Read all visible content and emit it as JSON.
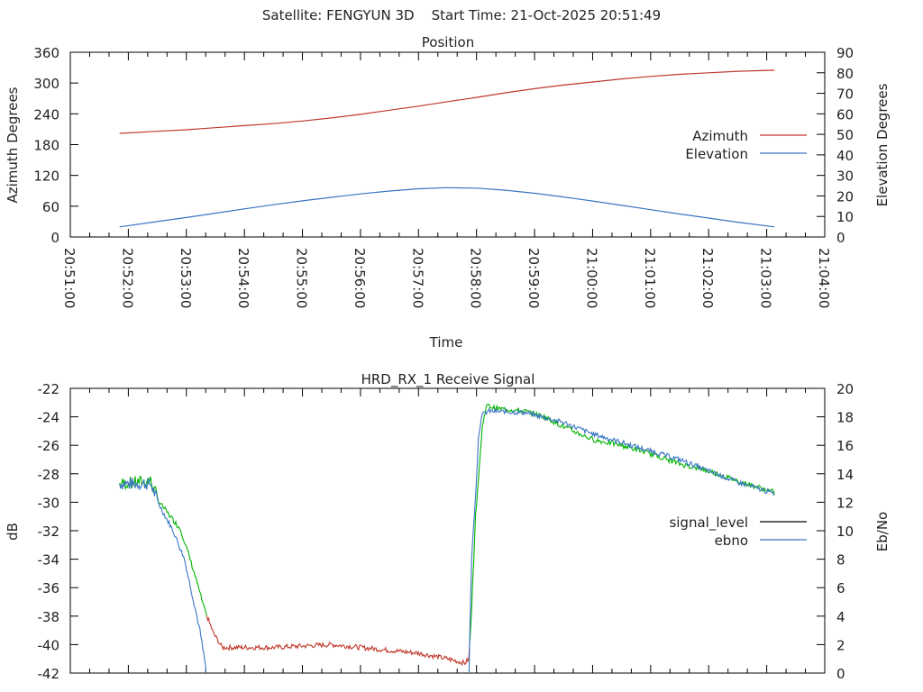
{
  "page_title": "Satellite: FENGYUN 3D    Start Time: 21-Oct-2025 20:51:49",
  "chart_data": [
    {
      "type": "line",
      "title": "Position",
      "xlabel": "Time",
      "ylabel": "Azimuth Degrees",
      "y2label": "Elevation Degrees",
      "xlim": [
        "20:51:00",
        "21:04:00"
      ],
      "ylim": [
        0,
        360
      ],
      "y2lim": [
        0,
        90
      ],
      "x_ticks": [
        "20:51:00",
        "20:52:00",
        "20:53:00",
        "20:54:00",
        "20:55:00",
        "20:56:00",
        "20:57:00",
        "20:58:00",
        "20:59:00",
        "21:00:00",
        "21:01:00",
        "21:02:00",
        "21:03:00",
        "21:04:00"
      ],
      "y_ticks": [
        "0",
        "60",
        "120",
        "180",
        "240",
        "300",
        "360"
      ],
      "y2_ticks": [
        "0",
        "10",
        "20",
        "30",
        "40",
        "50",
        "60",
        "70",
        "80",
        "90"
      ],
      "legend_position": "right",
      "x": [
        "20:51:51",
        "20:52:30",
        "20:53:00",
        "20:53:30",
        "20:54:00",
        "20:54:30",
        "20:55:00",
        "20:55:30",
        "20:56:00",
        "20:56:30",
        "20:57:00",
        "20:57:28",
        "20:58:00",
        "20:58:30",
        "20:59:00",
        "20:59:30",
        "21:00:00",
        "21:00:30",
        "21:01:00",
        "21:01:30",
        "21:02:00",
        "21:02:30",
        "21:03:08"
      ],
      "series": [
        {
          "name": "Azimuth",
          "axis": "y",
          "color": "#c0392b",
          "values": [
            202,
            206,
            209,
            213,
            217,
            221,
            226,
            232,
            239,
            247,
            255,
            263,
            272,
            281,
            289,
            296,
            302,
            308,
            313,
            317,
            320,
            323,
            325
          ]
        },
        {
          "name": "Elevation",
          "axis": "y2",
          "color": "#3a75c4",
          "values": [
            4.9,
            7.5,
            9.5,
            11.6,
            13.7,
            15.7,
            17.6,
            19.3,
            21.0,
            22.4,
            23.5,
            24.0,
            23.8,
            22.8,
            21.3,
            19.5,
            17.5,
            15.4,
            13.3,
            11.2,
            9.2,
            7.2,
            4.9
          ]
        }
      ]
    },
    {
      "type": "line",
      "title": "HRD_RX_1 Receive Signal",
      "ylabel": "dB",
      "y2label": "Eb/No",
      "xlim": [
        "20:51:00",
        "21:04:00"
      ],
      "ylim": [
        -42,
        -22
      ],
      "y2lim": [
        0,
        20
      ],
      "y_ticks": [
        "-42",
        "-40",
        "-38",
        "-36",
        "-34",
        "-32",
        "-30",
        "-28",
        "-26",
        "-24",
        "-22"
      ],
      "y2_ticks": [
        "0",
        "2",
        "4",
        "6",
        "8",
        "10",
        "12",
        "14",
        "16",
        "18",
        "20"
      ],
      "legend_position": "right",
      "signal_colors": {
        "ebno_positive": "#00b400",
        "ebno_zero": "#c0392b",
        "legend": "#000000"
      },
      "series": [
        {
          "name": "signal_level",
          "axis": "y",
          "color": "#000000",
          "x": [
            "20:51:51",
            "20:52:23",
            "20:52:32",
            "20:52:47",
            "20:52:54",
            "20:53:03",
            "20:53:10",
            "20:53:19",
            "20:53:28",
            "20:53:37",
            "20:53:45",
            "20:54:30",
            "20:55:30",
            "20:56:30",
            "20:57:00",
            "20:57:30",
            "20:57:48",
            "20:57:52",
            "20:57:55",
            "20:57:59",
            "20:58:02",
            "20:58:06",
            "20:58:10",
            "20:58:20",
            "20:58:50",
            "20:59:10",
            "20:59:30",
            "21:00:00",
            "21:00:30",
            "21:01:00",
            "21:01:30",
            "21:02:00",
            "21:02:30",
            "21:03:08"
          ],
          "values": [
            -28.7,
            -28.5,
            -30.0,
            -31.3,
            -31.9,
            -33.8,
            -35.4,
            -37.6,
            -39.2,
            -40.2,
            -40.2,
            -40.2,
            -40.0,
            -40.4,
            -40.6,
            -41.0,
            -41.3,
            -41.0,
            -37.3,
            -31.0,
            -28.3,
            -24.7,
            -23.2,
            -23.4,
            -23.6,
            -24.0,
            -24.7,
            -25.6,
            -26.0,
            -26.6,
            -27.3,
            -27.8,
            -28.5,
            -29.3
          ]
        },
        {
          "name": "ebno",
          "axis": "y2",
          "color": "#3a75c4",
          "x": [
            "20:51:51",
            "20:52:23",
            "20:52:32",
            "20:52:47",
            "20:52:58",
            "20:53:07",
            "20:53:14",
            "20:53:21",
            "20:57:52",
            "20:57:55",
            "20:57:59",
            "20:58:02",
            "20:58:05",
            "20:58:12",
            "20:58:50",
            "20:59:30",
            "21:00:00",
            "21:00:30",
            "21:01:00",
            "21:01:30",
            "21:02:00",
            "21:02:30",
            "21:03:08"
          ],
          "values": [
            13.3,
            13.3,
            11.8,
            9.9,
            8.0,
            5.2,
            3.0,
            0.0,
            0.0,
            8.2,
            12.5,
            16.5,
            18.1,
            18.4,
            18.3,
            17.6,
            16.8,
            16.2,
            15.6,
            15.0,
            14.2,
            13.4,
            12.6
          ]
        }
      ]
    }
  ]
}
